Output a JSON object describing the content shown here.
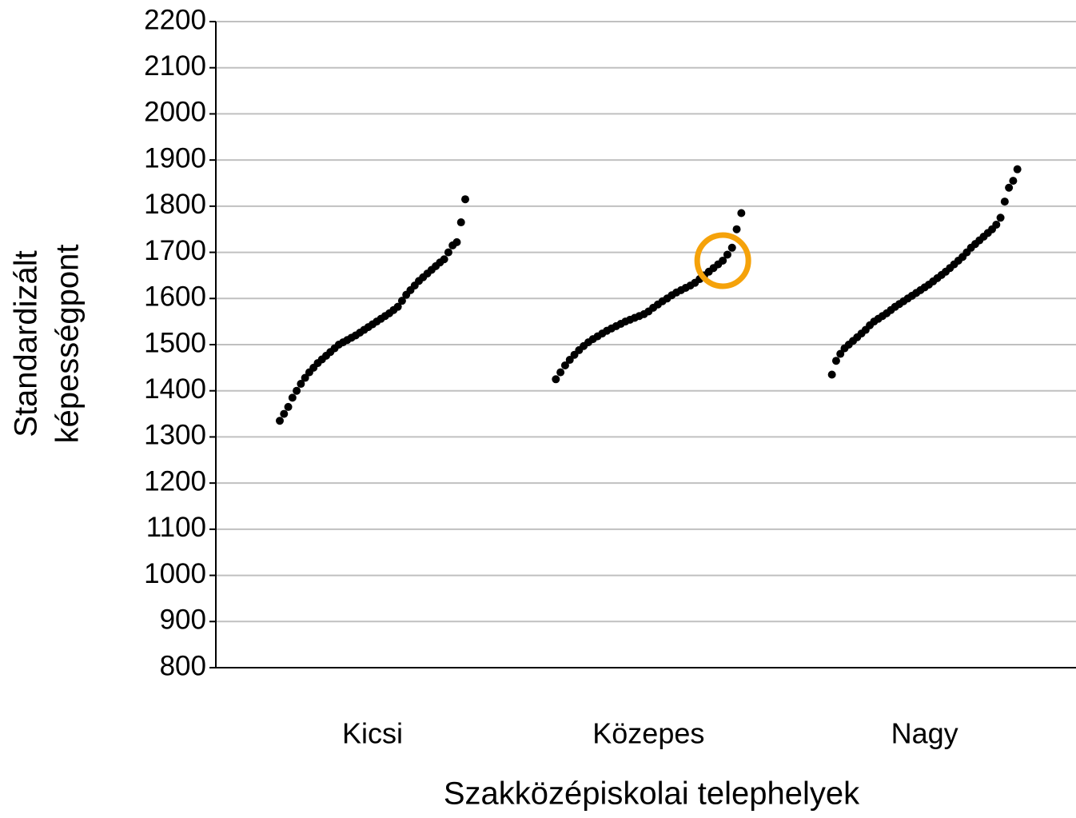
{
  "chart_data": {
    "type": "dot-strip",
    "xlabel": "Szakközépiskolai telephelyek",
    "ylabel": [
      "Standardizált",
      "képességpont"
    ],
    "categories": [
      "Kicsi",
      "Közepes",
      "Nagy"
    ],
    "ylim": [
      800,
      2200
    ],
    "yticks": [
      800,
      900,
      1000,
      1100,
      1200,
      1300,
      1400,
      1500,
      1600,
      1700,
      1800,
      1900,
      2000,
      2100,
      2200
    ],
    "grid": true,
    "color": "#000000",
    "series": [
      {
        "values": [
          1335,
          1350,
          1365,
          1385,
          1400,
          1415,
          1428,
          1440,
          1450,
          1460,
          1468,
          1476,
          1484,
          1492,
          1500,
          1505,
          1510,
          1515,
          1520,
          1526,
          1532,
          1538,
          1544,
          1550,
          1556,
          1562,
          1568,
          1575,
          1582,
          1595,
          1608,
          1618,
          1628,
          1638,
          1646,
          1654,
          1662,
          1670,
          1678,
          1685,
          1700,
          1715,
          1722,
          1765,
          1815
        ]
      },
      {
        "values": [
          1425,
          1440,
          1455,
          1467,
          1478,
          1488,
          1497,
          1505,
          1512,
          1518,
          1524,
          1530,
          1535,
          1540,
          1545,
          1550,
          1554,
          1558,
          1562,
          1566,
          1572,
          1580,
          1587,
          1594,
          1600,
          1607,
          1613,
          1618,
          1623,
          1628,
          1634,
          1642,
          1650,
          1658,
          1666,
          1674,
          1682,
          1695,
          1710,
          1750,
          1785
        ]
      },
      {
        "values": [
          1435,
          1465,
          1480,
          1492,
          1500,
          1508,
          1516,
          1524,
          1532,
          1542,
          1550,
          1556,
          1562,
          1568,
          1575,
          1582,
          1588,
          1594,
          1600,
          1606,
          1612,
          1618,
          1624,
          1630,
          1637,
          1644,
          1651,
          1658,
          1666,
          1674,
          1682,
          1690,
          1700,
          1710,
          1718,
          1726,
          1734,
          1742,
          1750,
          1760,
          1775,
          1810,
          1840,
          1855,
          1880
        ]
      }
    ],
    "highlight": {
      "series": 1,
      "index": 36,
      "color": "#f5a20a"
    }
  }
}
